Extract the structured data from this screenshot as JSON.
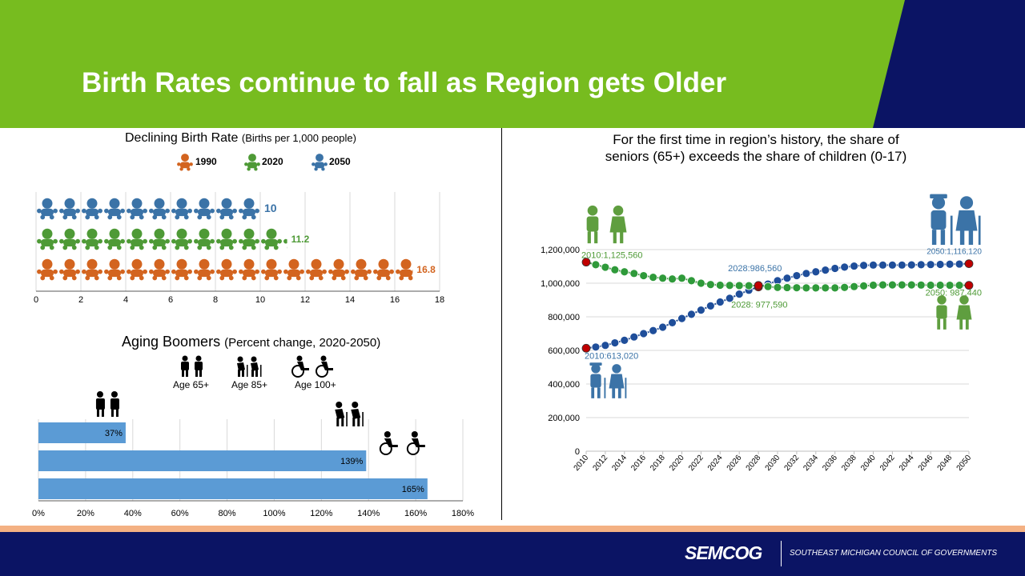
{
  "page": {
    "title": "Birth Rates continue to fall as Region gets Older",
    "logo": "SEMCOG",
    "org": "SOUTHEAST MICHIGAN COUNCIL OF GOVERNMENTS"
  },
  "colors": {
    "header_green": "#77bc1f",
    "header_navy": "#0b1464",
    "orange": "#d3641f",
    "green": "#4e9a36",
    "blue": "#3b73a7",
    "bar_blue": "#5b9bd5",
    "navy_marker": "#1f4e9a",
    "green_marker": "#2f9a3a",
    "red_marker": "#c00000"
  },
  "birth": {
    "title": "Declining Birth Rate",
    "subtitle": "(Births per 1,000 people)",
    "legend": [
      "1990",
      "2020",
      "2050"
    ]
  },
  "aging": {
    "title": "Aging Boomers",
    "subtitle": "(Percent change, 2020-2050)",
    "legend": [
      "Age 65+",
      "Age 85+",
      "Age 100+"
    ]
  },
  "share": {
    "title_line1": "For the first time in region’s history, the share of",
    "title_line2": "seniors (65+) exceeds the share of children (0-17)"
  },
  "chart_data": [
    {
      "type": "bar",
      "title": "Declining Birth Rate (Births per 1,000 people)",
      "orientation": "horizontal",
      "categories": [
        "2050",
        "2020",
        "1990"
      ],
      "values": [
        10,
        11.2,
        16.8
      ],
      "value_labels": [
        "10",
        "11.2",
        "16.8"
      ],
      "xlim": [
        0,
        18
      ],
      "xticks": [
        "0",
        "2",
        "4",
        "6",
        "8",
        "10",
        "12",
        "14",
        "16",
        "18"
      ],
      "grid": true
    },
    {
      "type": "bar",
      "title": "Aging Boomers (Percent change, 2020-2050)",
      "orientation": "horizontal",
      "categories": [
        "Age 65+",
        "Age 85+",
        "Age 100+"
      ],
      "values": [
        37,
        139,
        165
      ],
      "value_labels": [
        "37%",
        "139%",
        "165%"
      ],
      "xlim": [
        0,
        180
      ],
      "xticks": [
        "0%",
        "20%",
        "40%",
        "60%",
        "80%",
        "100%",
        "120%",
        "140%",
        "160%",
        "180%"
      ],
      "grid": true
    },
    {
      "type": "line",
      "title": "For the first time in region’s history, the share of seniors (65+) exceeds the share of children (0-17)",
      "x": [
        2010,
        2011,
        2012,
        2013,
        2014,
        2015,
        2016,
        2017,
        2018,
        2019,
        2020,
        2021,
        2022,
        2023,
        2024,
        2025,
        2026,
        2027,
        2028,
        2029,
        2030,
        2031,
        2032,
        2033,
        2034,
        2035,
        2036,
        2037,
        2038,
        2039,
        2040,
        2041,
        2042,
        2043,
        2044,
        2045,
        2046,
        2047,
        2048,
        2049,
        2050
      ],
      "xticks": [
        "2010",
        "2012",
        "2014",
        "2016",
        "2018",
        "2020",
        "2022",
        "2024",
        "2026",
        "2028",
        "2030",
        "2032",
        "2034",
        "2036",
        "2038",
        "2040",
        "2042",
        "2044",
        "2046",
        "2048",
        "2050"
      ],
      "ylim": [
        0,
        1200000
      ],
      "yticks": [
        "0",
        "200,000",
        "400,000",
        "600,000",
        "800,000",
        "1,000,000",
        "1,200,000"
      ],
      "grid": true,
      "series": [
        {
          "key": "seniors",
          "values": [
            613020,
            620000,
            630000,
            645000,
            660000,
            680000,
            700000,
            718000,
            738000,
            765000,
            790000,
            815000,
            840000,
            865000,
            888000,
            910000,
            935000,
            958000,
            977590,
            995000,
            1015000,
            1030000,
            1045000,
            1058000,
            1068000,
            1078000,
            1088000,
            1096000,
            1102000,
            1106000,
            1108000,
            1108000,
            1108000,
            1108000,
            1109000,
            1110000,
            1111000,
            1112000,
            1113000,
            1114000,
            1116120
          ]
        },
        {
          "key": "children",
          "values": [
            1125560,
            1110000,
            1095000,
            1080000,
            1068000,
            1058000,
            1045000,
            1035000,
            1030000,
            1025000,
            1030000,
            1015000,
            1000000,
            992000,
            988000,
            987000,
            986000,
            985000,
            986560,
            980000,
            975000,
            974000,
            973000,
            972000,
            972000,
            972000,
            972000,
            975000,
            980000,
            984000,
            988000,
            990000,
            990000,
            990000,
            990000,
            989000,
            988000,
            988000,
            987800,
            987600,
            987440
          ]
        }
      ],
      "annotations": [
        "2010:1,125,560",
        "2010:613,020",
        "2028:986,560",
        "2028: 977,590",
        "2050:1,116,120",
        "2050: 987,440"
      ]
    }
  ]
}
